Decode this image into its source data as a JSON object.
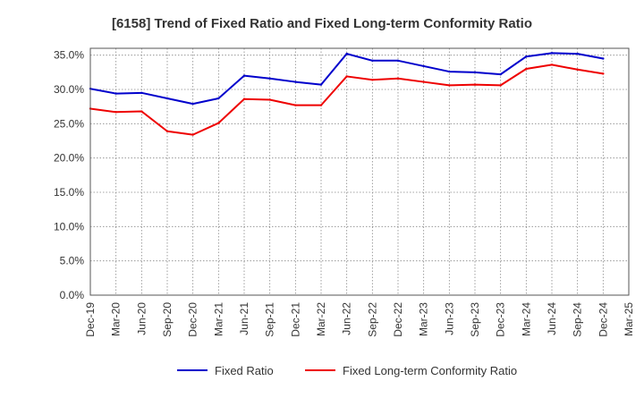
{
  "chart_data": {
    "type": "line",
    "title": "[6158]  Trend of Fixed Ratio and Fixed Long-term Conformity Ratio",
    "xlabel": "",
    "ylabel": "",
    "ylim": [
      0,
      36
    ],
    "yticks": [
      0,
      5,
      10,
      15,
      20,
      25,
      30,
      35
    ],
    "ytick_labels": [
      "0.0%",
      "5.0%",
      "10.0%",
      "15.0%",
      "20.0%",
      "25.0%",
      "30.0%",
      "35.0%"
    ],
    "xtick_labels": [
      "Dec-19",
      "Mar-20",
      "Jun-20",
      "Sep-20",
      "Dec-20",
      "Mar-21",
      "Jun-21",
      "Sep-21",
      "Dec-21",
      "Mar-22",
      "Jun-22",
      "Sep-22",
      "Dec-22",
      "Mar-23",
      "Jun-23",
      "Sep-23",
      "Dec-23",
      "Mar-24",
      "Jun-24",
      "Sep-24",
      "Dec-24",
      "Mar-25"
    ],
    "categories": [
      "Dec-19",
      "Mar-20",
      "Jun-20",
      "Sep-20",
      "Dec-20",
      "Mar-21",
      "Jun-21",
      "Sep-21",
      "Dec-21",
      "Mar-22",
      "Jun-22",
      "Sep-22",
      "Dec-22",
      "Mar-23",
      "Jun-23",
      "Sep-23",
      "Dec-23",
      "Mar-24",
      "Jun-24",
      "Sep-24",
      "Dec-24"
    ],
    "grid": true,
    "legend_position": "bottom",
    "series": [
      {
        "name": "Fixed Ratio",
        "color": "#0000cc",
        "values": [
          30.1,
          29.4,
          29.5,
          28.7,
          27.9,
          28.7,
          32.0,
          31.6,
          31.1,
          30.7,
          35.2,
          34.2,
          34.2,
          33.4,
          32.6,
          32.5,
          32.2,
          34.8,
          35.3,
          35.2,
          34.5
        ]
      },
      {
        "name": "Fixed Long-term Conformity Ratio",
        "color": "#ee0000",
        "values": [
          27.2,
          26.7,
          26.8,
          23.9,
          23.4,
          25.1,
          28.6,
          28.5,
          27.7,
          27.7,
          31.9,
          31.4,
          31.6,
          31.1,
          30.6,
          30.7,
          30.6,
          33.0,
          33.6,
          32.9,
          32.3
        ]
      }
    ]
  }
}
